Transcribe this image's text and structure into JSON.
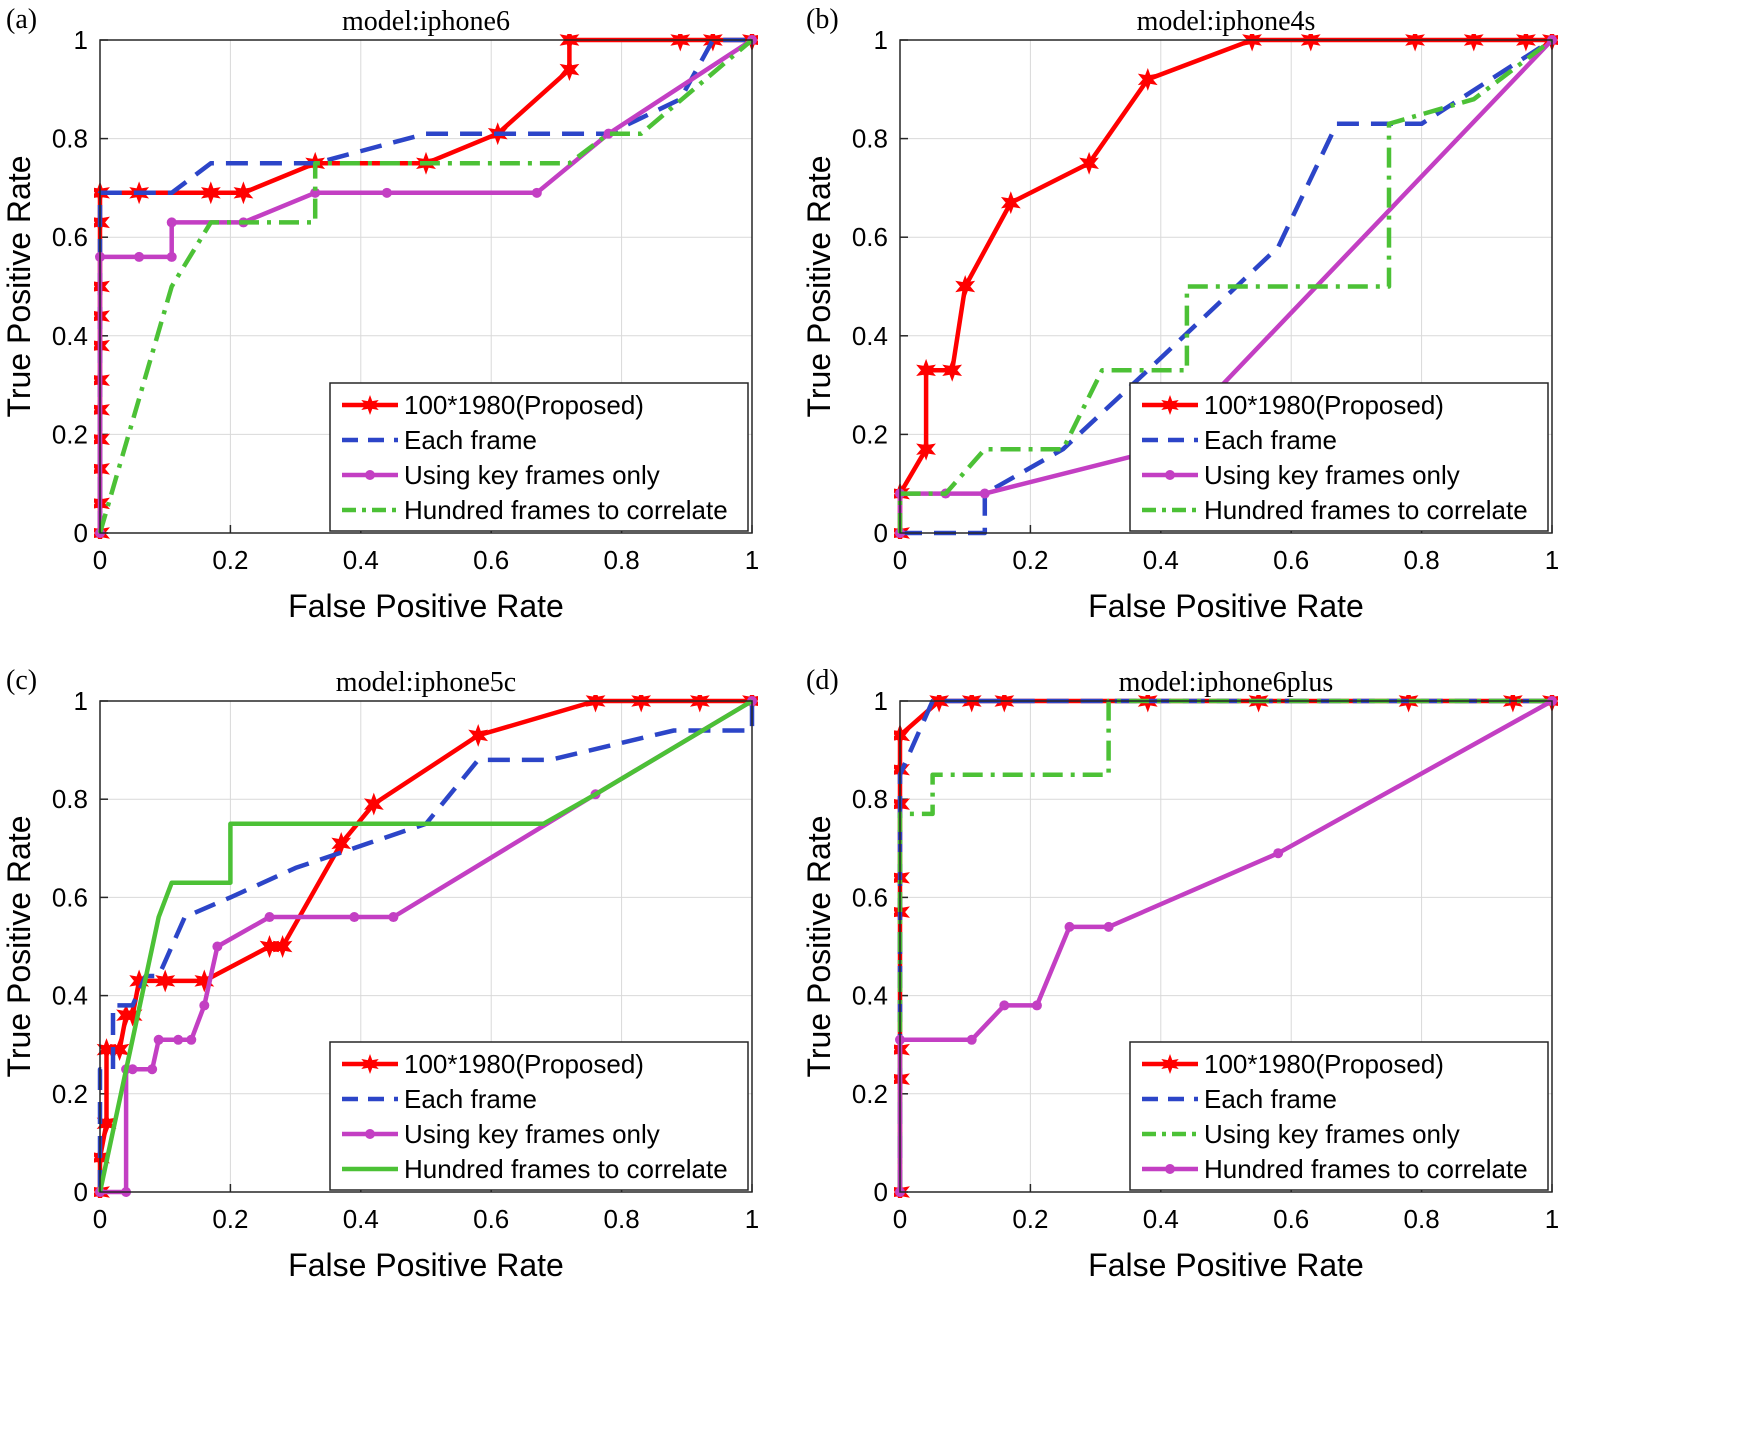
{
  "chart_data": [
    {
      "type": "line",
      "panel_label": "(a)",
      "title": "model:iphone6",
      "xlabel": "False Positive Rate",
      "ylabel": "True Positive Rate",
      "xlim": [
        0,
        1
      ],
      "ylim": [
        0,
        1
      ],
      "xticks": [
        "0",
        "0.2",
        "0.4",
        "0.6",
        "0.8",
        "1"
      ],
      "yticks": [
        "0",
        "0.2",
        "0.4",
        "0.6",
        "0.8",
        "1"
      ],
      "grid": true,
      "legend_position": "bottom-right",
      "series": [
        {
          "name": "100*1980(Proposed)",
          "color": "#ff0000",
          "dash": "solid",
          "marker": "star",
          "x": [
            0,
            0,
            0,
            0,
            0,
            0,
            0,
            0,
            0,
            0,
            0,
            0.06,
            0.17,
            0.22,
            0.33,
            0.5,
            0.61,
            0.72,
            0.72,
            0.89,
            0.94,
            1
          ],
          "y": [
            0,
            0.06,
            0.13,
            0.19,
            0.25,
            0.31,
            0.38,
            0.44,
            0.5,
            0.63,
            0.69,
            0.69,
            0.69,
            0.69,
            0.75,
            0.75,
            0.81,
            0.94,
            1,
            1,
            1,
            1
          ]
        },
        {
          "name": "Each frame",
          "color": "#2c45c8",
          "dash": "dash",
          "marker": "none",
          "x": [
            0,
            0,
            0.11,
            0.17,
            0.33,
            0.5,
            0.61,
            0.78,
            0.89,
            0.94,
            1
          ],
          "y": [
            0,
            0.69,
            0.69,
            0.75,
            0.75,
            0.81,
            0.81,
            0.81,
            0.88,
            1,
            1
          ]
        },
        {
          "name": "Using key frames only",
          "color": "#c33fc3",
          "dash": "solid",
          "marker": "dot",
          "x": [
            0,
            0,
            0.06,
            0.11,
            0.11,
            0.22,
            0.33,
            0.44,
            0.67,
            0.78,
            1
          ],
          "y": [
            0,
            0.56,
            0.56,
            0.56,
            0.63,
            0.63,
            0.69,
            0.69,
            0.69,
            0.81,
            1
          ]
        },
        {
          "name": "Hundred frames to correlate",
          "color": "#4cc136",
          "dash": "dashdot",
          "marker": "none",
          "x": [
            0,
            0.11,
            0.17,
            0.22,
            0.33,
            0.33,
            0.5,
            0.72,
            0.78,
            0.83,
            1
          ],
          "y": [
            0,
            0.5,
            0.63,
            0.63,
            0.63,
            0.75,
            0.75,
            0.75,
            0.81,
            0.81,
            1
          ]
        }
      ]
    },
    {
      "type": "line",
      "panel_label": "(b)",
      "title": "model:iphone4s",
      "xlabel": "False Positive Rate",
      "ylabel": "True Positive Rate",
      "xlim": [
        0,
        1
      ],
      "ylim": [
        0,
        1
      ],
      "xticks": [
        "0",
        "0.2",
        "0.4",
        "0.6",
        "0.8",
        "1"
      ],
      "yticks": [
        "0",
        "0.2",
        "0.4",
        "0.6",
        "0.8",
        "1"
      ],
      "grid": true,
      "legend_position": "bottom-right",
      "series": [
        {
          "name": "100*1980(Proposed)",
          "color": "#ff0000",
          "dash": "solid",
          "marker": "star",
          "x": [
            0,
            0,
            0.04,
            0.04,
            0.08,
            0.1,
            0.17,
            0.29,
            0.38,
            0.54,
            0.63,
            0.79,
            0.88,
            0.96,
            1
          ],
          "y": [
            0,
            0.08,
            0.17,
            0.33,
            0.33,
            0.5,
            0.67,
            0.75,
            0.92,
            1,
            1,
            1,
            1,
            1,
            1
          ]
        },
        {
          "name": "Each frame",
          "color": "#2c45c8",
          "dash": "dash",
          "marker": "none",
          "x": [
            0,
            0,
            0.13,
            0.13,
            0.25,
            0.38,
            0.58,
            0.67,
            0.8,
            1
          ],
          "y": [
            0,
            0,
            0,
            0.08,
            0.17,
            0.33,
            0.58,
            0.83,
            0.83,
            1
          ]
        },
        {
          "name": "Using key frames only",
          "color": "#c33fc3",
          "dash": "solid",
          "marker": "dot",
          "x": [
            0,
            0,
            0.07,
            0.13,
            0.4,
            1
          ],
          "y": [
            0,
            0.08,
            0.08,
            0.08,
            0.17,
            1
          ]
        },
        {
          "name": "Hundred frames to correlate",
          "color": "#4cc136",
          "dash": "dashdot",
          "marker": "none",
          "x": [
            0,
            0,
            0.07,
            0.13,
            0.25,
            0.31,
            0.44,
            0.44,
            0.75,
            0.75,
            0.88,
            1
          ],
          "y": [
            0,
            0.08,
            0.08,
            0.17,
            0.17,
            0.33,
            0.33,
            0.5,
            0.5,
            0.83,
            0.88,
            1
          ]
        }
      ]
    },
    {
      "type": "line",
      "panel_label": "(c)",
      "title": "model:iphone5c",
      "xlabel": "False Positive Rate",
      "ylabel": "True Positive Rate",
      "xlim": [
        0,
        1
      ],
      "ylim": [
        0,
        1
      ],
      "xticks": [
        "0",
        "0.2",
        "0.4",
        "0.6",
        "0.8",
        "1"
      ],
      "yticks": [
        "0",
        "0.2",
        "0.4",
        "0.6",
        "0.8",
        "1"
      ],
      "grid": true,
      "legend_position": "bottom-right",
      "series": [
        {
          "name": "100*1980(Proposed)",
          "color": "#ff0000",
          "dash": "solid",
          "marker": "star",
          "x": [
            0,
            0,
            0.01,
            0.01,
            0.03,
            0.04,
            0.05,
            0.06,
            0.1,
            0.16,
            0.26,
            0.28,
            0.37,
            0.42,
            0.58,
            0.76,
            0.83,
            0.92,
            1
          ],
          "y": [
            0,
            0.07,
            0.14,
            0.29,
            0.29,
            0.36,
            0.36,
            0.43,
            0.43,
            0.43,
            0.5,
            0.5,
            0.71,
            0.79,
            0.93,
            1,
            1,
            1,
            1
          ]
        },
        {
          "name": "Each frame",
          "color": "#2c45c8",
          "dash": "dash",
          "marker": "none",
          "x": [
            0,
            0,
            0.02,
            0.02,
            0.05,
            0.05,
            0.07,
            0.09,
            0.13,
            0.2,
            0.3,
            0.5,
            0.58,
            0.69,
            0.88,
            1,
            1
          ],
          "y": [
            0,
            0.25,
            0.25,
            0.38,
            0.38,
            0.38,
            0.44,
            0.44,
            0.56,
            0.6,
            0.66,
            0.75,
            0.88,
            0.88,
            0.94,
            0.94,
            1
          ]
        },
        {
          "name": "Using key frames only",
          "color": "#c33fc3",
          "dash": "solid",
          "marker": "dot",
          "x": [
            0,
            0.04,
            0.04,
            0.05,
            0.08,
            0.09,
            0.12,
            0.14,
            0.16,
            0.18,
            0.26,
            0.39,
            0.45,
            0.76,
            1
          ],
          "y": [
            0,
            0,
            0.25,
            0.25,
            0.25,
            0.31,
            0.31,
            0.31,
            0.38,
            0.5,
            0.56,
            0.56,
            0.56,
            0.81,
            1
          ]
        },
        {
          "name": "Hundred frames to correlate",
          "color": "#4cc136",
          "dash": "solid",
          "marker": "none",
          "x": [
            0,
            0.09,
            0.11,
            0.2,
            0.2,
            0.68,
            0.76,
            1
          ],
          "y": [
            0,
            0.56,
            0.63,
            0.63,
            0.75,
            0.75,
            0.81,
            1
          ]
        }
      ]
    },
    {
      "type": "line",
      "panel_label": "(d)",
      "title": "model:iphone6plus",
      "xlabel": "False Positive Rate",
      "ylabel": "True Positive Rate",
      "xlim": [
        0,
        1
      ],
      "ylim": [
        0,
        1
      ],
      "xticks": [
        "0",
        "0.2",
        "0.4",
        "0.6",
        "0.8",
        "1"
      ],
      "yticks": [
        "0",
        "0.2",
        "0.4",
        "0.6",
        "0.8",
        "1"
      ],
      "grid": true,
      "legend_position": "bottom-right",
      "series": [
        {
          "name": "100*1980(Proposed)",
          "color": "#ff0000",
          "dash": "solid",
          "marker": "star",
          "x": [
            0,
            0,
            0,
            0,
            0,
            0,
            0,
            0,
            0,
            0.06,
            0.11,
            0.16,
            0.38,
            0.55,
            0.78,
            0.94,
            1
          ],
          "y": [
            0,
            0.23,
            0.29,
            0.57,
            0.64,
            0.79,
            0.86,
            0.93,
            0.93,
            1,
            1,
            1,
            1,
            1,
            1,
            1,
            1
          ]
        },
        {
          "name": "Each frame",
          "color": "#2c45c8",
          "dash": "dash",
          "marker": "none",
          "x": [
            0,
            0,
            0.05,
            0.1,
            1
          ],
          "y": [
            0,
            0.85,
            1,
            1,
            1
          ]
        },
        {
          "name": "Using key frames only",
          "color": "#4cc136",
          "dash": "dashdot",
          "marker": "none",
          "x": [
            0,
            0,
            0.05,
            0.05,
            0.32,
            0.32,
            1
          ],
          "y": [
            0,
            0.77,
            0.77,
            0.85,
            0.85,
            1,
            1
          ]
        },
        {
          "name": "Hundred frames to correlate",
          "color": "#c33fc3",
          "dash": "solid",
          "marker": "dot",
          "x": [
            0,
            0,
            0.11,
            0.16,
            0.21,
            0.26,
            0.32,
            0.58,
            1
          ],
          "y": [
            0,
            0.31,
            0.31,
            0.38,
            0.38,
            0.54,
            0.54,
            0.69,
            1
          ]
        }
      ]
    }
  ]
}
